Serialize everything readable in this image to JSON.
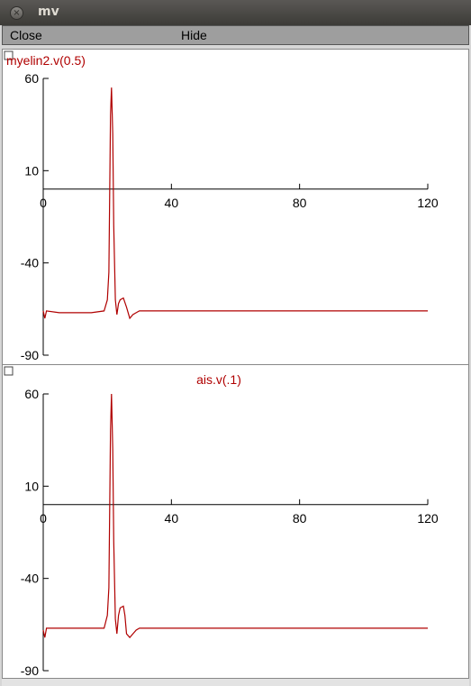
{
  "window": {
    "title": "mv",
    "close_glyph": "×"
  },
  "menu": {
    "close_label": "Close",
    "hide_label": "Hide"
  },
  "colors": {
    "trace": "#b00000",
    "axis": "#000000"
  },
  "chart_data": [
    {
      "type": "line",
      "title": "myelin2.v(0.5)",
      "xlim": [
        0,
        120
      ],
      "ylim": [
        -90,
        60
      ],
      "xticks": [
        "0",
        "40",
        "80",
        "120"
      ],
      "yticks": [
        "60",
        "10",
        "-40",
        "-90"
      ],
      "series": [
        {
          "name": "myelin2.v(0.5)",
          "x": [
            0,
            0.5,
            1,
            5,
            10,
            15,
            19,
            20,
            20.5,
            21,
            21.3,
            21.7,
            22,
            22.5,
            23,
            23.5,
            24,
            25,
            26,
            27,
            28,
            29,
            30,
            32,
            35,
            40,
            60,
            80,
            100,
            120
          ],
          "y": [
            -66,
            -70,
            -66,
            -67,
            -67,
            -67,
            -66,
            -60,
            -45,
            40,
            55,
            30,
            -20,
            -60,
            -68,
            -62,
            -60,
            -59,
            -64,
            -70,
            -68,
            -67,
            -66,
            -66,
            -66,
            -66,
            -66,
            -66,
            -66,
            -66
          ]
        }
      ]
    },
    {
      "type": "line",
      "title": "ais.v(.1)",
      "xlim": [
        0,
        120
      ],
      "ylim": [
        -90,
        60
      ],
      "xticks": [
        "0",
        "40",
        "80",
        "120"
      ],
      "yticks": [
        "60",
        "10",
        "-40",
        "-90"
      ],
      "series": [
        {
          "name": "ais.v(.1)",
          "x": [
            0,
            0.5,
            1,
            2,
            10,
            19,
            20,
            20.5,
            21,
            21.3,
            21.7,
            22,
            22.5,
            23,
            23.5,
            24,
            25,
            25.5,
            26,
            27,
            28,
            29,
            30,
            32,
            35,
            40,
            60,
            80,
            100,
            120
          ],
          "y": [
            -68,
            -72,
            -67,
            -67,
            -67,
            -67,
            -60,
            -45,
            40,
            60,
            30,
            -20,
            -62,
            -70,
            -60,
            -56,
            -55,
            -60,
            -70,
            -72,
            -70,
            -68,
            -67,
            -67,
            -67,
            -67,
            -67,
            -67,
            -67,
            -67
          ]
        }
      ]
    }
  ]
}
